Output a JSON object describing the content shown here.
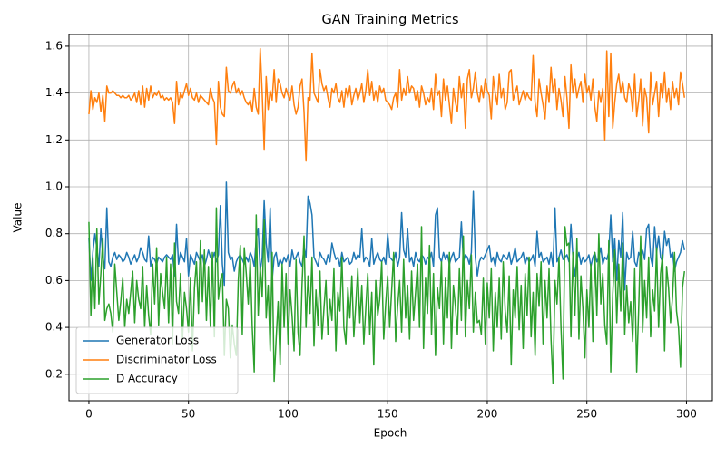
{
  "chart_data": {
    "type": "line",
    "title": "GAN Training Metrics",
    "x_label": "Epoch",
    "y_label": "Value",
    "x": [
      0,
      1,
      2,
      3,
      4,
      5,
      6,
      7,
      8,
      9,
      10,
      11,
      12,
      13,
      14,
      15,
      16,
      17,
      18,
      19,
      20,
      21,
      22,
      23,
      24,
      25,
      26,
      27,
      28,
      29,
      30,
      31,
      32,
      33,
      34,
      35,
      36,
      37,
      38,
      39,
      40,
      41,
      42,
      43,
      44,
      45,
      46,
      47,
      48,
      49,
      50,
      51,
      52,
      53,
      54,
      55,
      56,
      57,
      58,
      59,
      60,
      61,
      62,
      63,
      64,
      65,
      66,
      67,
      68,
      69,
      70,
      71,
      72,
      73,
      74,
      75,
      76,
      77,
      78,
      79,
      80,
      81,
      82,
      83,
      84,
      85,
      86,
      87,
      88,
      89,
      90,
      91,
      92,
      93,
      94,
      95,
      96,
      97,
      98,
      99,
      100,
      101,
      102,
      103,
      104,
      105,
      106,
      107,
      108,
      109,
      110,
      111,
      112,
      113,
      114,
      115,
      116,
      117,
      118,
      119,
      120,
      121,
      122,
      123,
      124,
      125,
      126,
      127,
      128,
      129,
      130,
      131,
      132,
      133,
      134,
      135,
      136,
      137,
      138,
      139,
      140,
      141,
      142,
      143,
      144,
      145,
      146,
      147,
      148,
      149,
      150,
      151,
      152,
      153,
      154,
      155,
      156,
      157,
      158,
      159,
      160,
      161,
      162,
      163,
      164,
      165,
      166,
      167,
      168,
      169,
      170,
      171,
      172,
      173,
      174,
      175,
      176,
      177,
      178,
      179,
      180,
      181,
      182,
      183,
      184,
      185,
      186,
      187,
      188,
      189,
      190,
      191,
      192,
      193,
      194,
      195,
      196,
      197,
      198,
      199,
      200,
      201,
      202,
      203,
      204,
      205,
      206,
      207,
      208,
      209,
      210,
      211,
      212,
      213,
      214,
      215,
      216,
      217,
      218,
      219,
      220,
      221,
      222,
      223,
      224,
      225,
      226,
      227,
      228,
      229,
      230,
      231,
      232,
      233,
      234,
      235,
      236,
      237,
      238,
      239,
      240,
      241,
      242,
      243,
      244,
      245,
      246,
      247,
      248,
      249,
      250,
      251,
      252,
      253,
      254,
      255,
      256,
      257,
      258,
      259,
      260,
      261,
      262,
      263,
      264,
      265,
      266,
      267,
      268,
      269,
      270,
      271,
      272,
      273,
      274,
      275,
      276,
      277,
      278,
      279,
      280,
      281,
      282,
      283,
      284,
      285,
      286,
      287,
      288,
      289,
      290,
      291,
      292,
      293,
      294,
      295,
      296,
      297,
      298,
      299
    ],
    "series": [
      {
        "name": "Generator Loss",
        "color": "#1f77b4",
        "values": [
          0.78,
          0.6,
          0.72,
          0.8,
          0.74,
          0.66,
          0.82,
          0.7,
          0.65,
          0.91,
          0.68,
          0.66,
          0.7,
          0.72,
          0.69,
          0.71,
          0.7,
          0.68,
          0.69,
          0.72,
          0.7,
          0.67,
          0.69,
          0.71,
          0.68,
          0.7,
          0.74,
          0.72,
          0.69,
          0.68,
          0.79,
          0.66,
          0.7,
          0.69,
          0.67,
          0.7,
          0.69,
          0.68,
          0.7,
          0.71,
          0.7,
          0.69,
          0.71,
          0.62,
          0.84,
          0.67,
          0.72,
          0.7,
          0.68,
          0.78,
          0.62,
          0.71,
          0.69,
          0.67,
          0.72,
          0.7,
          0.68,
          0.71,
          0.66,
          0.69,
          0.73,
          0.7,
          0.69,
          0.72,
          0.68,
          0.71,
          0.92,
          0.67,
          0.58,
          1.02,
          0.72,
          0.69,
          0.7,
          0.64,
          0.68,
          0.7,
          0.71,
          0.69,
          0.67,
          0.7,
          0.68,
          0.72,
          0.7,
          0.66,
          0.78,
          0.82,
          0.64,
          0.7,
          0.94,
          0.76,
          0.68,
          0.91,
          0.6,
          0.7,
          0.72,
          0.66,
          0.69,
          0.67,
          0.7,
          0.68,
          0.71,
          0.66,
          0.73,
          0.69,
          0.7,
          0.72,
          0.68,
          0.66,
          0.74,
          0.7,
          0.96,
          0.93,
          0.88,
          0.7,
          0.68,
          0.66,
          0.72,
          0.7,
          0.69,
          0.67,
          0.71,
          0.68,
          0.76,
          0.72,
          0.69,
          0.7,
          0.66,
          0.72,
          0.68,
          0.69,
          0.7,
          0.67,
          0.68,
          0.72,
          0.69,
          0.71,
          0.7,
          0.82,
          0.68,
          0.7,
          0.69,
          0.66,
          0.78,
          0.67,
          0.7,
          0.72,
          0.69,
          0.68,
          0.7,
          0.67,
          0.8,
          0.7,
          0.69,
          0.68,
          0.72,
          0.66,
          0.7,
          0.89,
          0.73,
          0.7,
          0.82,
          0.68,
          0.7,
          0.66,
          0.72,
          0.69,
          0.68,
          0.71,
          0.7,
          0.67,
          0.7,
          0.69,
          0.72,
          0.66,
          0.88,
          0.91,
          0.7,
          0.68,
          0.72,
          0.69,
          0.71,
          0.67,
          0.7,
          0.72,
          0.68,
          0.69,
          0.7,
          0.85,
          0.68,
          0.71,
          0.7,
          0.67,
          0.72,
          0.98,
          0.7,
          0.62,
          0.68,
          0.7,
          0.69,
          0.71,
          0.73,
          0.75,
          0.68,
          0.7,
          0.66,
          0.72,
          0.69,
          0.68,
          0.71,
          0.7,
          0.69,
          0.72,
          0.67,
          0.7,
          0.74,
          0.68,
          0.69,
          0.7,
          0.72,
          0.67,
          0.7,
          0.68,
          0.69,
          0.71,
          0.66,
          0.81,
          0.7,
          0.72,
          0.68,
          0.69,
          0.7,
          0.67,
          0.72,
          0.66,
          0.91,
          0.68,
          0.7,
          0.73,
          0.69,
          0.7,
          0.71,
          0.68,
          0.84,
          0.7,
          0.62,
          0.69,
          0.72,
          0.67,
          0.7,
          0.68,
          0.69,
          0.71,
          0.66,
          0.7,
          0.72,
          0.68,
          0.7,
          0.74,
          0.67,
          0.7,
          0.69,
          0.72,
          0.88,
          0.68,
          0.78,
          0.6,
          0.77,
          0.7,
          0.89,
          0.56,
          0.72,
          0.69,
          0.7,
          0.81,
          0.68,
          0.66,
          0.72,
          0.7,
          0.73,
          0.69,
          0.82,
          0.84,
          0.7,
          0.66,
          0.83,
          0.72,
          0.79,
          0.7,
          0.68,
          0.81,
          0.75,
          0.78,
          0.7,
          0.72,
          0.64,
          0.68,
          0.7,
          0.72,
          0.77,
          0.73
        ]
      },
      {
        "name": "Discriminator Loss",
        "color": "#ff7f0e",
        "values": [
          1.31,
          1.41,
          1.33,
          1.38,
          1.36,
          1.4,
          1.32,
          1.39,
          1.28,
          1.43,
          1.4,
          1.4,
          1.41,
          1.4,
          1.39,
          1.39,
          1.38,
          1.39,
          1.38,
          1.38,
          1.39,
          1.37,
          1.38,
          1.4,
          1.36,
          1.41,
          1.35,
          1.43,
          1.34,
          1.42,
          1.37,
          1.43,
          1.38,
          1.4,
          1.39,
          1.41,
          1.38,
          1.39,
          1.37,
          1.38,
          1.37,
          1.38,
          1.36,
          1.27,
          1.45,
          1.35,
          1.4,
          1.38,
          1.41,
          1.44,
          1.39,
          1.42,
          1.38,
          1.37,
          1.4,
          1.36,
          1.39,
          1.38,
          1.37,
          1.36,
          1.35,
          1.42,
          1.38,
          1.36,
          1.18,
          1.45,
          1.34,
          1.31,
          1.3,
          1.51,
          1.41,
          1.4,
          1.43,
          1.45,
          1.4,
          1.42,
          1.39,
          1.41,
          1.38,
          1.36,
          1.35,
          1.37,
          1.32,
          1.42,
          1.34,
          1.31,
          1.59,
          1.4,
          1.16,
          1.47,
          1.33,
          1.41,
          1.37,
          1.5,
          1.36,
          1.46,
          1.44,
          1.4,
          1.38,
          1.42,
          1.39,
          1.37,
          1.43,
          1.35,
          1.31,
          1.34,
          1.43,
          1.46,
          1.32,
          1.11,
          1.38,
          1.37,
          1.57,
          1.4,
          1.38,
          1.36,
          1.5,
          1.44,
          1.41,
          1.43,
          1.38,
          1.34,
          1.42,
          1.4,
          1.44,
          1.38,
          1.36,
          1.41,
          1.34,
          1.42,
          1.38,
          1.43,
          1.35,
          1.39,
          1.42,
          1.37,
          1.4,
          1.44,
          1.36,
          1.41,
          1.5,
          1.39,
          1.45,
          1.37,
          1.41,
          1.36,
          1.43,
          1.4,
          1.42,
          1.37,
          1.36,
          1.35,
          1.33,
          1.38,
          1.4,
          1.34,
          1.5,
          1.37,
          1.42,
          1.39,
          1.47,
          1.4,
          1.43,
          1.42,
          1.37,
          1.41,
          1.34,
          1.43,
          1.4,
          1.35,
          1.38,
          1.36,
          1.42,
          1.33,
          1.48,
          1.39,
          1.41,
          1.3,
          1.46,
          1.37,
          1.43,
          1.35,
          1.27,
          1.42,
          1.36,
          1.32,
          1.47,
          1.38,
          1.44,
          1.25,
          1.46,
          1.5,
          1.38,
          1.42,
          1.49,
          1.4,
          1.36,
          1.43,
          1.38,
          1.46,
          1.41,
          1.39,
          1.29,
          1.47,
          1.4,
          1.35,
          1.48,
          1.38,
          1.42,
          1.33,
          1.36,
          1.49,
          1.5,
          1.37,
          1.4,
          1.43,
          1.35,
          1.38,
          1.41,
          1.37,
          1.4,
          1.38,
          1.37,
          1.56,
          1.36,
          1.3,
          1.46,
          1.4,
          1.35,
          1.29,
          1.43,
          1.36,
          1.51,
          1.4,
          1.46,
          1.33,
          1.42,
          1.37,
          1.3,
          1.47,
          1.38,
          1.25,
          1.52,
          1.4,
          1.46,
          1.38,
          1.42,
          1.45,
          1.36,
          1.48,
          1.4,
          1.43,
          1.37,
          1.46,
          1.34,
          1.28,
          1.41,
          1.36,
          1.42,
          1.2,
          1.58,
          1.3,
          1.57,
          1.25,
          1.36,
          1.44,
          1.48,
          1.4,
          1.45,
          1.38,
          1.36,
          1.44,
          1.41,
          1.32,
          1.48,
          1.3,
          1.37,
          1.46,
          1.26,
          1.42,
          1.38,
          1.23,
          1.49,
          1.35,
          1.4,
          1.45,
          1.3,
          1.44,
          1.38,
          1.49,
          1.36,
          1.42,
          1.33,
          1.45,
          1.38,
          1.42,
          1.35,
          1.49,
          1.44,
          1.38
        ]
      },
      {
        "name": "D Accuracy",
        "color": "#2ca02c",
        "values": [
          0.85,
          0.45,
          0.7,
          0.48,
          0.82,
          0.5,
          0.63,
          0.78,
          0.43,
          0.48,
          0.5,
          0.46,
          0.38,
          0.67,
          0.55,
          0.43,
          0.51,
          0.61,
          0.4,
          0.52,
          0.46,
          0.55,
          0.64,
          0.42,
          0.6,
          0.52,
          0.48,
          0.66,
          0.4,
          0.58,
          0.45,
          0.37,
          0.67,
          0.5,
          0.74,
          0.41,
          0.63,
          0.55,
          0.48,
          0.7,
          0.42,
          0.67,
          0.33,
          0.76,
          0.51,
          0.46,
          0.63,
          0.35,
          0.55,
          0.48,
          0.38,
          0.61,
          0.3,
          0.57,
          0.68,
          0.46,
          0.77,
          0.51,
          0.73,
          0.43,
          0.66,
          0.4,
          0.72,
          0.36,
          0.91,
          0.52,
          0.6,
          0.63,
          0.28,
          0.52,
          0.48,
          0.27,
          0.41,
          0.33,
          0.28,
          0.6,
          0.75,
          0.37,
          0.74,
          0.63,
          0.5,
          0.69,
          0.4,
          0.21,
          0.88,
          0.45,
          0.66,
          0.53,
          0.86,
          0.44,
          0.58,
          0.3,
          0.72,
          0.17,
          0.35,
          0.51,
          0.24,
          0.67,
          0.4,
          0.63,
          0.33,
          0.56,
          0.45,
          0.3,
          0.69,
          0.38,
          0.28,
          0.58,
          0.79,
          0.4,
          0.62,
          0.46,
          0.7,
          0.32,
          0.56,
          0.41,
          0.64,
          0.35,
          0.48,
          0.6,
          0.37,
          0.52,
          0.43,
          0.65,
          0.3,
          0.55,
          0.47,
          0.7,
          0.4,
          0.33,
          0.57,
          0.44,
          0.62,
          0.36,
          0.5,
          0.65,
          0.42,
          0.58,
          0.33,
          0.48,
          0.63,
          0.37,
          0.55,
          0.24,
          0.6,
          0.45,
          0.52,
          0.68,
          0.35,
          0.5,
          0.62,
          0.4,
          0.56,
          0.72,
          0.34,
          0.49,
          0.6,
          0.38,
          0.69,
          0.44,
          0.58,
          0.35,
          0.64,
          0.43,
          0.55,
          0.67,
          0.4,
          0.83,
          0.31,
          0.61,
          0.46,
          0.75,
          0.37,
          0.63,
          0.28,
          0.57,
          0.48,
          0.68,
          0.33,
          0.61,
          0.44,
          0.72,
          0.31,
          0.58,
          0.49,
          0.37,
          0.65,
          0.43,
          0.79,
          0.36,
          0.6,
          0.48,
          0.71,
          0.38,
          0.55,
          0.42,
          0.43,
          0.37,
          0.61,
          0.33,
          0.59,
          0.44,
          0.65,
          0.3,
          0.55,
          0.4,
          0.61,
          0.35,
          0.68,
          0.47,
          0.38,
          0.62,
          0.24,
          0.56,
          0.44,
          0.66,
          0.39,
          0.58,
          0.31,
          0.63,
          0.45,
          0.7,
          0.36,
          0.55,
          0.28,
          0.63,
          0.49,
          0.68,
          0.33,
          0.6,
          0.44,
          0.65,
          0.35,
          0.16,
          0.6,
          0.5,
          0.7,
          0.4,
          0.18,
          0.83,
          0.75,
          0.76,
          0.36,
          0.72,
          0.45,
          0.78,
          0.35,
          0.62,
          0.48,
          0.27,
          0.56,
          0.4,
          0.67,
          0.34,
          0.72,
          0.45,
          0.8,
          0.5,
          0.63,
          0.41,
          0.33,
          0.77,
          0.21,
          0.54,
          0.73,
          0.42,
          0.67,
          0.47,
          0.76,
          0.37,
          0.58,
          0.42,
          0.51,
          0.34,
          0.65,
          0.21,
          0.48,
          0.79,
          0.38,
          0.6,
          0.44,
          0.7,
          0.36,
          0.56,
          0.47,
          0.74,
          0.4,
          0.63,
          0.71,
          0.3,
          0.66,
          0.57,
          0.42,
          0.53,
          0.72,
          0.47,
          0.4,
          0.23,
          0.57,
          0.64
        ]
      }
    ],
    "xlim": [
      -10,
      313
    ],
    "ylim": [
      0.087,
      1.65
    ],
    "xticks": [
      0,
      50,
      100,
      150,
      200,
      250,
      300
    ],
    "yticks": [
      0.2,
      0.4,
      0.6,
      0.8,
      {
        "value": 1,
        "label": "1.0"
      },
      1.2,
      1.4,
      1.6
    ],
    "grid": true,
    "legend": "lower-left"
  }
}
